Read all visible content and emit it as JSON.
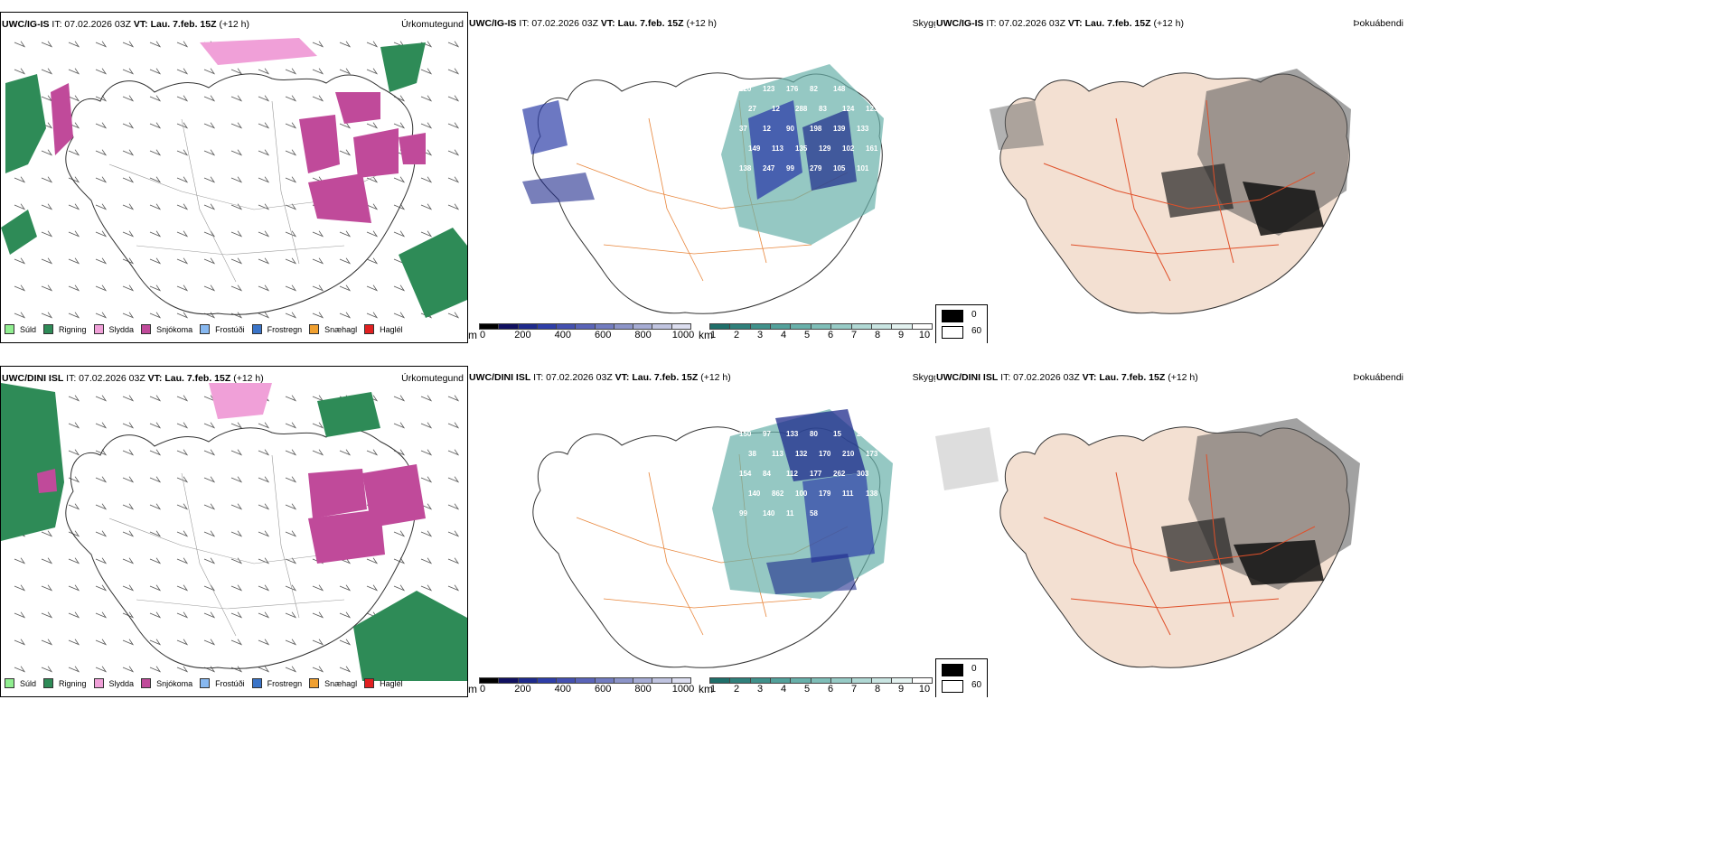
{
  "rows": [
    {
      "model": "UWC/IG-IS",
      "it_label": "IT: 07.02.2026 03Z",
      "vt_label": "VT: Lau. 7.feb. 15Z",
      "lead": "(+12 h)"
    },
    {
      "model": "UWC/DINI ISL",
      "it_label": "IT: 07.02.2026 03Z",
      "vt_label": "VT: Lau. 7.feb. 15Z",
      "lead": "(+12 h)"
    }
  ],
  "panel_names": {
    "precip_type": "Úrkomutegund",
    "clouds": "Skyggni",
    "fog": "Þokuábendi"
  },
  "precip_legend": [
    {
      "label": "Súld",
      "color": "#90ee90"
    },
    {
      "label": "Rigning",
      "color": "#2e8b57"
    },
    {
      "label": "Slydda",
      "color": "#f0a0d8"
    },
    {
      "label": "Snjókoma",
      "color": "#c04a9a"
    },
    {
      "label": "Frostúði",
      "color": "#87b8f0"
    },
    {
      "label": "Frostregn",
      "color": "#3a74c8"
    },
    {
      "label": "Snæhagl",
      "color": "#f0a030"
    },
    {
      "label": "Haglél",
      "color": "#e02020"
    }
  ],
  "cloud_base_bar": {
    "unit": "m",
    "ticks": [
      "0",
      "200",
      "400",
      "600",
      "800",
      "1000"
    ],
    "colors": [
      "#000000",
      "#101060",
      "#1e2a8c",
      "#2e3ea8",
      "#4450b0",
      "#5a64b8",
      "#727cc0",
      "#8c94c8",
      "#a6acd4",
      "#c0c4e0",
      "#dcdef0"
    ]
  },
  "visibility_bar": {
    "unit": "km",
    "ticks": [
      "1",
      "2",
      "3",
      "4",
      "5",
      "6",
      "7",
      "8",
      "9",
      "10"
    ],
    "colors": [
      "#1f6f6a",
      "#2f807b",
      "#40918b",
      "#53a19b",
      "#68b0aa",
      "#7fbeb8",
      "#97cbc6",
      "#b0d8d4",
      "#c9e5e2",
      "#e3f2f0",
      "#ffffff"
    ]
  },
  "fog_legend": [
    {
      "label": "0",
      "color": "#000000"
    },
    {
      "label": "60",
      "color": "#ffffff"
    }
  ],
  "map_values": {
    "row1": [
      "120",
      "123",
      "176",
      "82",
      "148",
      "96",
      "27",
      "12",
      "288",
      "83",
      "124",
      "123",
      "37",
      "12",
      "90",
      "198",
      "139",
      "133",
      "149",
      "113",
      "135",
      "129",
      "102",
      "161",
      "138",
      "247",
      "99",
      "279",
      "105",
      "101"
    ],
    "row2": [
      "150",
      "97",
      "133",
      "80",
      "15",
      "24",
      "38",
      "113",
      "132",
      "170",
      "210",
      "173",
      "154",
      "84",
      "112",
      "177",
      "262",
      "303",
      "140",
      "862",
      "100",
      "179",
      "111",
      "138",
      "99",
      "140",
      "11",
      "58"
    ]
  }
}
